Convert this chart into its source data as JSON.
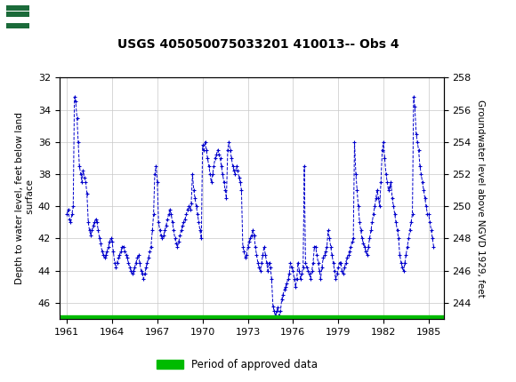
{
  "title": "USGS 405050075033201 410013-- Obs 4",
  "ylabel_left": "Depth to water level, feet below land\n surface",
  "ylabel_right": "Groundwater level above NGVD 1929, feet",
  "ylim_left": [
    32,
    47.0
  ],
  "xlim": [
    1960.5,
    1986.0
  ],
  "xticks": [
    1961,
    1964,
    1967,
    1970,
    1973,
    1976,
    1979,
    1982,
    1985
  ],
  "yticks_left": [
    32,
    34,
    36,
    38,
    40,
    42,
    44,
    46
  ],
  "header_color": "#1b6b3a",
  "line_color": "#0000cc",
  "green_bar_color": "#00bb00",
  "background_color": "#ffffff",
  "legend_label": "Period of approved data",
  "years": [
    1961.0,
    1961.08,
    1961.17,
    1961.25,
    1961.33,
    1961.42,
    1961.5,
    1961.58,
    1961.67,
    1961.75,
    1961.83,
    1961.92,
    1962.0,
    1962.08,
    1962.17,
    1962.25,
    1962.33,
    1962.42,
    1962.5,
    1962.58,
    1962.67,
    1962.75,
    1962.83,
    1962.92,
    1963.0,
    1963.08,
    1963.17,
    1963.25,
    1963.33,
    1963.42,
    1963.5,
    1963.58,
    1963.67,
    1963.75,
    1963.83,
    1963.92,
    1964.0,
    1964.08,
    1964.17,
    1964.25,
    1964.33,
    1964.42,
    1964.5,
    1964.58,
    1964.67,
    1964.75,
    1964.83,
    1964.92,
    1965.0,
    1965.08,
    1965.17,
    1965.25,
    1965.33,
    1965.42,
    1965.5,
    1965.58,
    1965.67,
    1965.75,
    1965.83,
    1965.92,
    1966.0,
    1966.08,
    1966.17,
    1966.25,
    1966.33,
    1966.42,
    1966.5,
    1966.58,
    1966.67,
    1966.75,
    1966.83,
    1966.92,
    1967.0,
    1967.08,
    1967.17,
    1967.25,
    1967.33,
    1967.42,
    1967.5,
    1967.58,
    1967.67,
    1967.75,
    1967.83,
    1967.92,
    1968.0,
    1968.08,
    1968.17,
    1968.25,
    1968.33,
    1968.42,
    1968.5,
    1968.58,
    1968.67,
    1968.75,
    1968.83,
    1968.92,
    1969.0,
    1969.08,
    1969.17,
    1969.25,
    1969.33,
    1969.42,
    1969.5,
    1969.58,
    1969.67,
    1969.75,
    1969.83,
    1969.92,
    1970.0,
    1970.08,
    1970.17,
    1970.25,
    1970.33,
    1970.42,
    1970.5,
    1970.58,
    1970.67,
    1970.75,
    1970.83,
    1970.92,
    1971.0,
    1971.08,
    1971.17,
    1971.25,
    1971.33,
    1971.42,
    1971.5,
    1971.58,
    1971.67,
    1971.75,
    1971.83,
    1971.92,
    1972.0,
    1972.08,
    1972.17,
    1972.25,
    1972.33,
    1972.42,
    1972.5,
    1972.58,
    1972.67,
    1972.75,
    1972.83,
    1972.92,
    1973.0,
    1973.08,
    1973.17,
    1973.25,
    1973.33,
    1973.42,
    1973.5,
    1973.58,
    1973.67,
    1973.75,
    1973.83,
    1973.92,
    1974.0,
    1974.08,
    1974.17,
    1974.25,
    1974.33,
    1974.42,
    1974.5,
    1974.58,
    1974.67,
    1974.75,
    1974.83,
    1974.92,
    1975.0,
    1975.08,
    1975.17,
    1975.25,
    1975.33,
    1975.42,
    1975.5,
    1975.58,
    1975.67,
    1975.75,
    1975.83,
    1975.92,
    1976.0,
    1976.08,
    1976.17,
    1976.25,
    1976.33,
    1976.42,
    1976.5,
    1976.58,
    1976.67,
    1976.75,
    1976.83,
    1976.92,
    1977.0,
    1977.08,
    1977.17,
    1977.25,
    1977.33,
    1977.42,
    1977.5,
    1977.58,
    1977.67,
    1977.75,
    1977.83,
    1977.92,
    1978.0,
    1978.08,
    1978.17,
    1978.25,
    1978.33,
    1978.42,
    1978.5,
    1978.58,
    1978.67,
    1978.75,
    1978.83,
    1978.92,
    1979.0,
    1979.08,
    1979.17,
    1979.25,
    1979.33,
    1979.42,
    1979.5,
    1979.58,
    1979.67,
    1979.75,
    1979.83,
    1979.92,
    1980.0,
    1980.08,
    1980.17,
    1980.25,
    1980.33,
    1980.42,
    1980.5,
    1980.58,
    1980.67,
    1980.75,
    1980.83,
    1980.92,
    1981.0,
    1981.08,
    1981.17,
    1981.25,
    1981.33,
    1981.42,
    1981.5,
    1981.58,
    1981.67,
    1981.75,
    1981.83,
    1981.92,
    1982.0,
    1982.08,
    1982.17,
    1982.25,
    1982.33,
    1982.42,
    1982.5,
    1982.58,
    1982.67,
    1982.75,
    1982.83,
    1982.92,
    1983.0,
    1983.08,
    1983.17,
    1983.25,
    1983.33,
    1983.42,
    1983.5,
    1983.58,
    1983.67,
    1983.75,
    1983.83,
    1983.92,
    1984.0,
    1984.08,
    1984.17,
    1984.25,
    1984.33,
    1984.42,
    1984.5,
    1984.58,
    1984.67,
    1984.75,
    1984.83,
    1984.92,
    1985.0,
    1985.08,
    1985.17,
    1985.25,
    1985.33
  ],
  "depths": [
    40.5,
    40.2,
    40.8,
    41.0,
    40.5,
    40.0,
    33.2,
    33.5,
    34.5,
    36.0,
    37.5,
    38.0,
    38.5,
    37.8,
    38.2,
    38.5,
    39.2,
    41.0,
    41.5,
    41.8,
    41.5,
    41.2,
    41.0,
    40.8,
    41.0,
    41.5,
    42.0,
    42.3,
    42.8,
    43.0,
    43.2,
    43.0,
    42.8,
    42.5,
    42.2,
    42.0,
    42.2,
    42.8,
    43.5,
    43.8,
    43.5,
    43.2,
    43.0,
    42.8,
    42.5,
    42.5,
    42.8,
    43.0,
    43.2,
    43.5,
    43.8,
    44.0,
    44.2,
    44.0,
    43.8,
    43.5,
    43.2,
    43.0,
    43.5,
    44.0,
    44.2,
    44.5,
    44.2,
    43.8,
    43.5,
    43.2,
    42.8,
    42.5,
    41.5,
    40.5,
    38.0,
    37.5,
    38.5,
    41.0,
    41.5,
    41.8,
    42.0,
    41.8,
    41.5,
    41.2,
    40.8,
    40.5,
    40.2,
    40.5,
    41.0,
    41.5,
    42.0,
    42.3,
    42.5,
    42.2,
    41.8,
    41.5,
    41.2,
    41.0,
    40.8,
    40.5,
    40.2,
    40.0,
    40.2,
    39.8,
    38.0,
    39.0,
    39.5,
    40.0,
    40.5,
    41.0,
    41.5,
    42.0,
    36.2,
    36.5,
    36.0,
    36.5,
    37.0,
    37.5,
    38.0,
    38.5,
    38.0,
    37.5,
    37.0,
    36.8,
    36.5,
    36.8,
    37.0,
    37.5,
    38.0,
    38.5,
    39.0,
    39.5,
    36.5,
    36.0,
    36.5,
    37.0,
    37.5,
    37.8,
    38.0,
    37.5,
    37.8,
    38.2,
    38.5,
    39.0,
    42.5,
    42.8,
    43.2,
    43.0,
    42.5,
    42.2,
    42.0,
    41.8,
    41.5,
    41.8,
    42.5,
    43.0,
    43.5,
    43.8,
    44.0,
    43.5,
    43.0,
    42.5,
    43.0,
    43.5,
    44.0,
    43.5,
    43.8,
    44.5,
    46.2,
    46.5,
    46.8,
    46.5,
    46.3,
    46.8,
    46.5,
    45.8,
    45.5,
    45.2,
    45.0,
    44.8,
    44.5,
    44.2,
    43.5,
    43.8,
    44.0,
    44.5,
    45.0,
    44.5,
    43.5,
    44.0,
    44.5,
    44.2,
    43.8,
    37.5,
    43.5,
    43.8,
    44.0,
    44.2,
    44.5,
    44.0,
    43.5,
    42.5,
    42.5,
    43.0,
    43.5,
    44.0,
    44.5,
    43.8,
    43.2,
    43.0,
    42.8,
    42.5,
    41.5,
    42.0,
    42.5,
    43.0,
    43.5,
    44.0,
    44.5,
    44.2,
    43.8,
    43.5,
    43.5,
    44.0,
    44.2,
    43.8,
    43.5,
    43.2,
    43.0,
    42.8,
    42.5,
    42.2,
    42.0,
    36.0,
    38.0,
    39.0,
    40.0,
    41.0,
    41.5,
    42.0,
    42.3,
    42.5,
    42.8,
    43.0,
    42.5,
    42.0,
    41.5,
    41.0,
    40.5,
    40.0,
    39.5,
    39.0,
    39.5,
    40.0,
    38.5,
    36.5,
    36.0,
    37.0,
    38.0,
    38.5,
    39.0,
    38.8,
    38.5,
    39.5,
    40.0,
    40.5,
    41.0,
    41.5,
    42.0,
    43.0,
    43.5,
    43.8,
    44.0,
    43.5,
    43.0,
    42.5,
    42.0,
    41.5,
    41.0,
    40.5,
    33.2,
    33.8,
    35.5,
    36.0,
    36.5,
    37.5,
    38.0,
    38.5,
    39.0,
    39.5,
    40.0,
    40.5,
    40.5,
    41.0,
    41.5,
    42.0,
    42.5
  ]
}
